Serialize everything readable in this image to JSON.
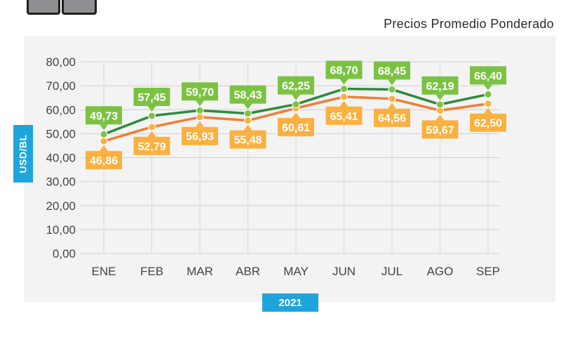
{
  "header": {
    "subtitle": "Precios Promedio Ponderado"
  },
  "colors": {
    "green_series": "#2e8b3e",
    "green_label": "#7cc242",
    "orange_series": "#f07e32",
    "orange_label": "#fbb040",
    "panel": "#f3f3f3",
    "axis_badge": "#1fa5dc"
  },
  "chart_data": {
    "type": "line",
    "title": "Precios Promedio Ponderado",
    "xlabel": "2021",
    "ylabel": "USD/BL",
    "categories": [
      "ENE",
      "FEB",
      "MAR",
      "ABR",
      "MAY",
      "JUN",
      "JUL",
      "AGO",
      "SEP"
    ],
    "ylim": [
      0,
      80
    ],
    "yticks": [
      "0,00",
      "10,00",
      "20,00",
      "30,00",
      "40,00",
      "50,00",
      "60,00",
      "70,00",
      "80,00"
    ],
    "series": [
      {
        "name": "green",
        "values": [
          49.73,
          57.45,
          59.7,
          58.43,
          62.25,
          68.7,
          68.45,
          62.19,
          66.4
        ],
        "labels": [
          "49,73",
          "57,45",
          "59,70",
          "58,43",
          "62,25",
          "68,70",
          "68,45",
          "62,19",
          "66,40"
        ]
      },
      {
        "name": "orange",
        "values": [
          46.86,
          52.79,
          56.93,
          55.48,
          60.61,
          65.41,
          64.56,
          59.67,
          62.5
        ],
        "labels": [
          "46,86",
          "52,79",
          "56,93",
          "55,48",
          "60,61",
          "65,41",
          "64,56",
          "59,67",
          "62,50"
        ]
      }
    ]
  }
}
